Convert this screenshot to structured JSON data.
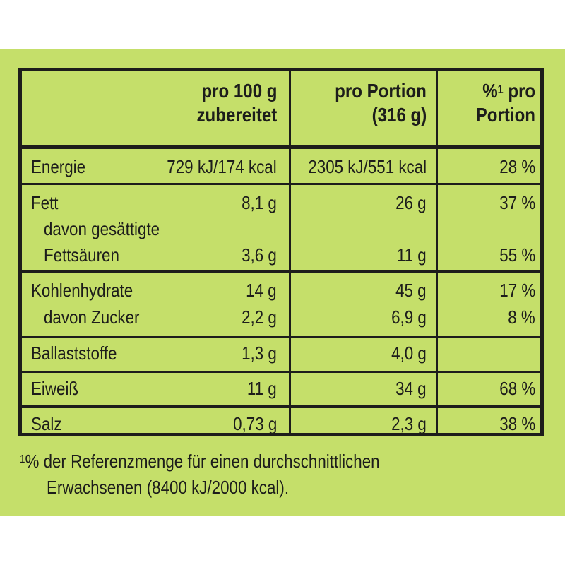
{
  "colors": {
    "background": "#c5df6a",
    "text": "#1d1d1b"
  },
  "header": {
    "per100_line1": "pro 100 g",
    "per100_line2": "zubereitet",
    "portion_line1": "pro Portion",
    "portion_line2": "(316 g)",
    "percent_line1": "%",
    "percent_sup": "1",
    "percent_line1b": " pro",
    "percent_line2": "Portion"
  },
  "rows": [
    {
      "label": "Energie",
      "per100": "729 kJ/174 kcal",
      "portion": "2305 kJ/551 kcal",
      "percent": "28 %"
    },
    {
      "label": "Fett",
      "per100": "8,1 g",
      "portion": "26 g",
      "percent": "37 %"
    },
    {
      "label": "davon gesättigte",
      "per100": "",
      "portion": "",
      "percent": ""
    },
    {
      "label": "Fettsäuren",
      "per100": "3,6 g",
      "portion": "11 g",
      "percent": "55 %"
    },
    {
      "label": "Kohlenhydrate",
      "per100": "14 g",
      "portion": "45 g",
      "percent": "17 %"
    },
    {
      "label": "davon Zucker",
      "per100": "2,2 g",
      "portion": "6,9 g",
      "percent": "8 %"
    },
    {
      "label": "Ballaststoffe",
      "per100": "1,3 g",
      "portion": "4,0 g",
      "percent": ""
    },
    {
      "label": "Eiweiß",
      "per100": "11 g",
      "portion": "34 g",
      "percent": "68 %"
    },
    {
      "label": "Salz",
      "per100": "0,73 g",
      "portion": "2,3 g",
      "percent": "38 %"
    }
  ],
  "footnote": {
    "marker": "1",
    "line1": "% der Referenzmenge für einen durchschnittlichen",
    "line2": "Erwachsenen (8400 kJ/2000 kcal)."
  }
}
